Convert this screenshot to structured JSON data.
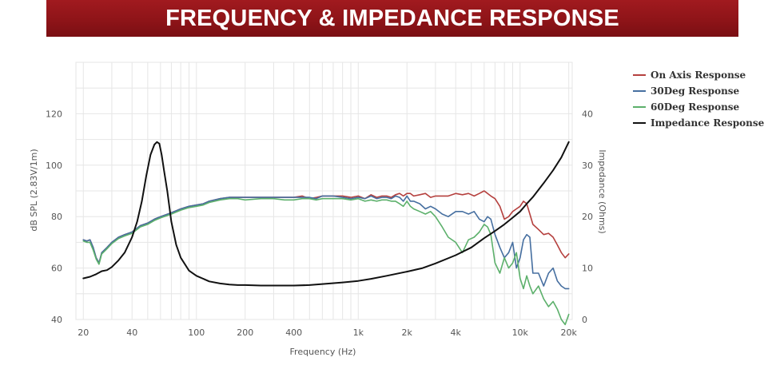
{
  "header": {
    "title": "FREQUENCY & IMPEDANCE RESPONSE"
  },
  "chart_data": {
    "type": "line",
    "title": "FREQUENCY & IMPEDANCE RESPONSE",
    "xlabel": "Frequency (Hz)",
    "ylabel_left": "dB SPL (2.83V/1m)",
    "ylabel_right": "Impedance (Ohms)",
    "x_scale": "log",
    "xlim": [
      18,
      21000
    ],
    "ylim_left": [
      40,
      140
    ],
    "ylim_right": [
      0,
      50
    ],
    "x_ticks": [
      {
        "value": 20,
        "label": "20"
      },
      {
        "value": 40,
        "label": "40"
      },
      {
        "value": 100,
        "label": "100"
      },
      {
        "value": 200,
        "label": "200"
      },
      {
        "value": 400,
        "label": "400"
      },
      {
        "value": 1000,
        "label": "1k"
      },
      {
        "value": 2000,
        "label": "2k"
      },
      {
        "value": 4000,
        "label": "4k"
      },
      {
        "value": 10000,
        "label": "10k"
      },
      {
        "value": 20000,
        "label": "20k"
      }
    ],
    "y_ticks_left": [
      40,
      60,
      80,
      100,
      120
    ],
    "y_ticks_right": [
      0,
      10,
      20,
      30,
      40
    ],
    "grid": true,
    "legend_position": "top-right",
    "series": [
      {
        "name": "On Axis Response",
        "axis": "left",
        "color": "#b5403e",
        "x": [
          20,
          21,
          22,
          23,
          24,
          25,
          26,
          28,
          30,
          33,
          36,
          40,
          45,
          50,
          55,
          60,
          70,
          80,
          90,
          100,
          110,
          120,
          140,
          160,
          180,
          200,
          250,
          300,
          350,
          400,
          450,
          500,
          550,
          600,
          700,
          800,
          900,
          1000,
          1100,
          1200,
          1300,
          1400,
          1500,
          1600,
          1700,
          1800,
          1900,
          2000,
          2100,
          2200,
          2400,
          2600,
          2800,
          3000,
          3300,
          3600,
          4000,
          4400,
          4800,
          5200,
          5600,
          6000,
          6300,
          6600,
          7000,
          7500,
          8000,
          8500,
          9000,
          9500,
          10000,
          10500,
          11000,
          11500,
          12000,
          13000,
          14000,
          15000,
          16000,
          17000,
          18000,
          19000,
          20000
        ],
        "y": [
          71,
          70.5,
          71,
          68,
          64,
          62,
          66,
          68,
          70,
          72,
          73,
          74,
          76.5,
          77.5,
          79,
          80,
          81.5,
          83,
          84,
          84.5,
          85,
          86,
          87,
          87.5,
          87.5,
          87.5,
          87.5,
          87.5,
          87.5,
          87.5,
          88,
          87,
          87.5,
          88,
          88,
          88,
          87.5,
          88,
          87,
          88.5,
          87.5,
          88,
          88,
          87.5,
          88.5,
          89,
          88,
          89,
          89,
          88,
          88.5,
          89,
          87.5,
          88,
          88,
          88,
          89,
          88.5,
          89,
          88,
          89,
          90,
          89,
          88,
          87,
          84,
          79,
          80,
          82,
          83,
          84,
          86,
          85,
          81,
          77,
          75,
          73,
          73.5,
          72,
          69,
          66,
          64,
          65.5
        ]
      },
      {
        "name": "30Deg Response",
        "axis": "left",
        "color": "#466fa0",
        "x": [
          20,
          21,
          22,
          23,
          24,
          25,
          26,
          28,
          30,
          33,
          36,
          40,
          45,
          50,
          55,
          60,
          70,
          80,
          90,
          100,
          110,
          120,
          140,
          160,
          180,
          200,
          250,
          300,
          350,
          400,
          450,
          500,
          550,
          600,
          700,
          800,
          900,
          1000,
          1100,
          1200,
          1300,
          1400,
          1500,
          1600,
          1700,
          1800,
          1900,
          2000,
          2100,
          2200,
          2400,
          2600,
          2800,
          3000,
          3300,
          3600,
          4000,
          4400,
          4800,
          5200,
          5600,
          6000,
          6300,
          6600,
          7000,
          7500,
          8000,
          8500,
          9000,
          9500,
          10000,
          10500,
          11000,
          11500,
          12000,
          13000,
          14000,
          15000,
          16000,
          17000,
          18000,
          19000,
          20000
        ],
        "y": [
          71,
          70.5,
          71,
          68,
          64,
          62,
          66,
          68,
          70,
          72,
          73,
          74,
          76.5,
          77.5,
          79,
          80,
          81.5,
          83,
          84,
          84.5,
          85,
          86,
          87,
          87.5,
          87.5,
          87.5,
          87.5,
          87.5,
          87.5,
          87.5,
          87.5,
          87.5,
          87,
          88,
          88,
          87.5,
          87,
          87.5,
          87,
          88,
          87,
          87.5,
          87.5,
          87,
          88,
          87.5,
          86,
          88,
          86,
          86,
          85,
          83,
          84,
          83,
          81,
          80,
          82,
          82,
          81,
          82,
          79,
          78,
          80,
          79,
          73,
          68,
          64,
          66,
          70,
          60,
          64,
          71,
          73,
          72,
          58,
          58,
          53,
          58,
          60,
          55,
          53,
          52,
          52
        ]
      },
      {
        "name": "60Deg Response",
        "axis": "left",
        "color": "#5cb06b",
        "x": [
          20,
          21,
          22,
          23,
          24,
          25,
          26,
          28,
          30,
          33,
          36,
          40,
          45,
          50,
          55,
          60,
          70,
          80,
          90,
          100,
          110,
          120,
          140,
          160,
          180,
          200,
          250,
          300,
          350,
          400,
          450,
          500,
          550,
          600,
          700,
          800,
          900,
          1000,
          1100,
          1200,
          1300,
          1400,
          1500,
          1600,
          1700,
          1800,
          1900,
          2000,
          2100,
          2200,
          2400,
          2600,
          2800,
          3000,
          3300,
          3600,
          4000,
          4400,
          4800,
          5200,
          5600,
          6000,
          6300,
          6600,
          7000,
          7500,
          8000,
          8500,
          9000,
          9500,
          10000,
          10500,
          11000,
          11500,
          12000,
          13000,
          14000,
          15000,
          16000,
          17000,
          18000,
          19000,
          20000
        ],
        "y": [
          70.5,
          70,
          70,
          67,
          63.5,
          61.5,
          65.5,
          67.5,
          69.5,
          71.5,
          72.5,
          73.5,
          76,
          77,
          78.5,
          79.5,
          81,
          82.5,
          83.5,
          84,
          84.5,
          85.5,
          86.5,
          87,
          87,
          86.5,
          87,
          87,
          86.5,
          86.5,
          87,
          87,
          86.5,
          87,
          87,
          87,
          86.5,
          87,
          86,
          86.5,
          86,
          86.5,
          86.5,
          86,
          86,
          85,
          84,
          86,
          84,
          83,
          82,
          81,
          82,
          80,
          76,
          72,
          70,
          66,
          71,
          72,
          74,
          77,
          76,
          73,
          62,
          58,
          64,
          60,
          62,
          66,
          56,
          52,
          57,
          53,
          50,
          53,
          48,
          45,
          47,
          44,
          40,
          38,
          42
        ]
      },
      {
        "name": "Impedance Response",
        "axis": "right",
        "color": "#111111",
        "x": [
          20,
          22,
          24,
          26,
          28,
          30,
          33,
          36,
          40,
          43,
          46,
          49,
          52,
          55,
          57,
          59,
          61,
          63,
          66,
          70,
          75,
          80,
          90,
          100,
          120,
          140,
          160,
          180,
          200,
          250,
          300,
          400,
          500,
          600,
          800,
          1000,
          1200,
          1500,
          2000,
          2500,
          3000,
          4000,
          5000,
          6000,
          7000,
          8000,
          9000,
          10000,
          11000,
          12000,
          14000,
          16000,
          18000,
          20000
        ],
        "y": [
          8,
          8.3,
          8.8,
          9.4,
          9.6,
          10.2,
          11.5,
          13,
          16,
          19,
          23,
          28,
          32,
          34,
          34.5,
          34.2,
          32,
          29,
          25,
          19,
          14.5,
          12,
          9.5,
          8.5,
          7.4,
          7,
          6.8,
          6.7,
          6.7,
          6.6,
          6.6,
          6.6,
          6.7,
          6.9,
          7.2,
          7.5,
          7.9,
          8.5,
          9.3,
          10,
          10.9,
          12.5,
          14,
          15.8,
          17.2,
          18.5,
          19.8,
          21,
          22.5,
          23.8,
          26.5,
          29,
          31.5,
          34.5
        ]
      }
    ]
  }
}
